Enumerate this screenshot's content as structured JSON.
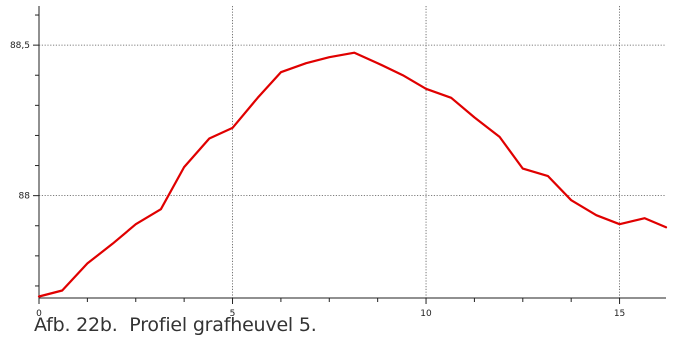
{
  "caption": "Afb. 22b.  Profiel grafheuvel 5.",
  "chart_data": {
    "type": "line",
    "xlim": [
      0,
      16.2
    ],
    "ylim": [
      87.66,
      88.63
    ],
    "x_ticks": [
      {
        "value": 0,
        "label": "0"
      },
      {
        "value": 5,
        "label": "5"
      },
      {
        "value": 10,
        "label": "10"
      },
      {
        "value": 15,
        "label": "15"
      }
    ],
    "y_ticks": [
      {
        "value": 88,
        "label": "88"
      },
      {
        "value": 88.5,
        "label": "88,5"
      }
    ],
    "grid": true,
    "line_color": "#e00000",
    "series": [
      {
        "x": [
          0,
          0.6,
          1.25,
          1.9,
          2.5,
          3.15,
          3.75,
          4.4,
          5.0,
          5.65,
          6.25,
          6.9,
          7.5,
          8.15,
          8.75,
          9.4,
          10.0,
          10.65,
          11.25,
          11.9,
          12.5,
          13.15,
          13.75,
          14.4,
          15.0,
          15.65,
          16.2
        ],
        "y": [
          87.665,
          87.685,
          87.775,
          87.84,
          87.905,
          87.955,
          88.095,
          88.19,
          88.225,
          88.325,
          88.41,
          88.44,
          88.46,
          88.475,
          88.44,
          88.4,
          88.355,
          88.325,
          88.26,
          88.195,
          88.09,
          88.065,
          87.985,
          87.935,
          87.905,
          87.925,
          87.895
        ]
      }
    ]
  }
}
